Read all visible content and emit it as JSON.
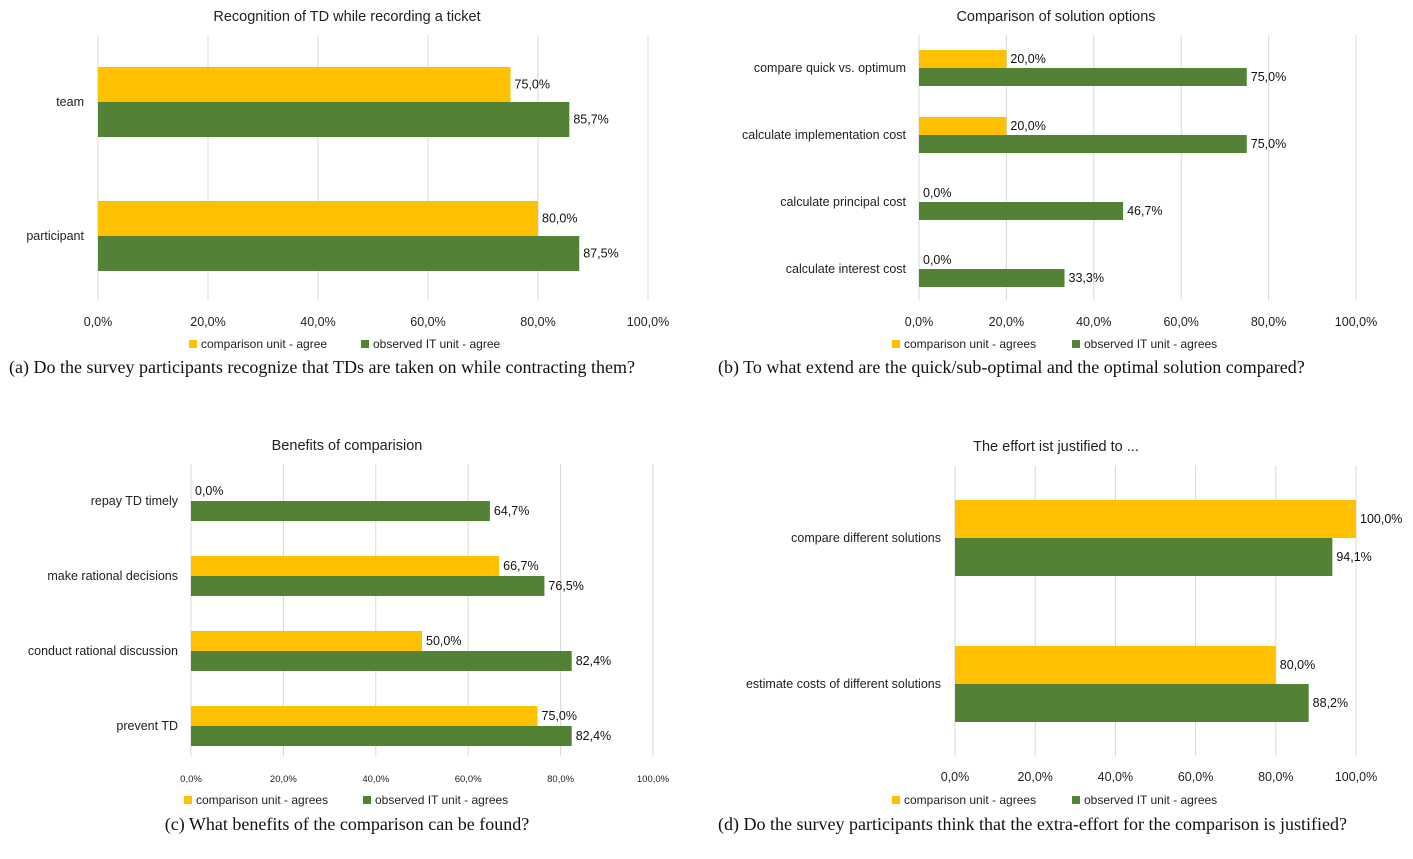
{
  "colors": {
    "comparison": "#FFC000",
    "observed": "#538135",
    "grid": "#D9D9D9",
    "text": "#404040"
  },
  "captions": [
    "(a) Do the survey participants recognize that TDs are taken on while contracting them?",
    "(b) To what extend are the quick/sub-optimal and the optimal solution compared?",
    "(c) What benefits of the comparison can be found?",
    "(d) Do the survey participants think that the extra-effort for the comparison is justified?"
  ],
  "chart_data": [
    {
      "type": "bar",
      "orientation": "horizontal",
      "title": "Recognition of TD while recording a ticket",
      "categories": [
        "team",
        "participant"
      ],
      "series": [
        {
          "name": "comparison unit - agree",
          "values": [
            75.0,
            80.0
          ],
          "labels": [
            "75,0%",
            "80,0%"
          ]
        },
        {
          "name": "observed IT unit - agree",
          "values": [
            85.7,
            87.5
          ],
          "labels": [
            "85,7%",
            "87,5%"
          ]
        }
      ],
      "xlim": [
        0,
        100
      ],
      "xticks": [
        "0,0%",
        "20,0%",
        "40,0%",
        "60,0%",
        "80,0%",
        "100,0%"
      ],
      "grid": true,
      "legend_position": "bottom"
    },
    {
      "type": "bar",
      "orientation": "horizontal",
      "title": "Comparison of solution options",
      "categories": [
        "compare quick vs. optimum",
        "calculate implementation cost",
        "calculate principal cost",
        "calculate interest cost"
      ],
      "series": [
        {
          "name": "comparison unit - agrees",
          "values": [
            20.0,
            20.0,
            0.0,
            0.0
          ],
          "labels": [
            "20,0%",
            "20,0%",
            "0,0%",
            "0,0%"
          ]
        },
        {
          "name": "observed IT unit - agrees",
          "values": [
            75.0,
            75.0,
            46.7,
            33.3
          ],
          "labels": [
            "75,0%",
            "75,0%",
            "46,7%",
            "33,3%"
          ]
        }
      ],
      "xlim": [
        0,
        100
      ],
      "xticks": [
        "0,0%",
        "20,0%",
        "40,0%",
        "60,0%",
        "80,0%",
        "100,0%"
      ],
      "grid": true,
      "legend_position": "bottom"
    },
    {
      "type": "bar",
      "orientation": "horizontal",
      "title": "Benefits of comparision",
      "categories": [
        "repay TD timely",
        "make rational decisions",
        "conduct rational discussion",
        "prevent TD"
      ],
      "series": [
        {
          "name": "comparison unit - agrees",
          "values": [
            0.0,
            66.7,
            50.0,
            75.0
          ],
          "labels": [
            "0,0%",
            "66,7%",
            "50,0%",
            "75,0%"
          ]
        },
        {
          "name": "observed IT unit - agrees",
          "values": [
            64.7,
            76.5,
            82.4,
            82.4
          ],
          "labels": [
            "64,7%",
            "76,5%",
            "82,4%",
            "82,4%"
          ]
        }
      ],
      "xlim": [
        0,
        100
      ],
      "xticks": [
        "0,0%",
        "20,0%",
        "40,0%",
        "60,0%",
        "80,0%",
        "100,0%"
      ],
      "grid": true,
      "legend_position": "bottom"
    },
    {
      "type": "bar",
      "orientation": "horizontal",
      "title": "The effort ist justified to ...",
      "categories": [
        "compare different solutions",
        "estimate costs of different solutions"
      ],
      "series": [
        {
          "name": "comparison unit - agrees",
          "values": [
            100.0,
            80.0
          ],
          "labels": [
            "100,0%",
            "80,0%"
          ]
        },
        {
          "name": "observed IT unit - agrees",
          "values": [
            94.1,
            88.2
          ],
          "labels": [
            "94,1%",
            "88,2%"
          ]
        }
      ],
      "xlim": [
        0,
        100
      ],
      "xticks": [
        "0,0%",
        "20,0%",
        "40,0%",
        "60,0%",
        "80,0%",
        "100,0%"
      ],
      "grid": true,
      "legend_position": "bottom"
    }
  ]
}
